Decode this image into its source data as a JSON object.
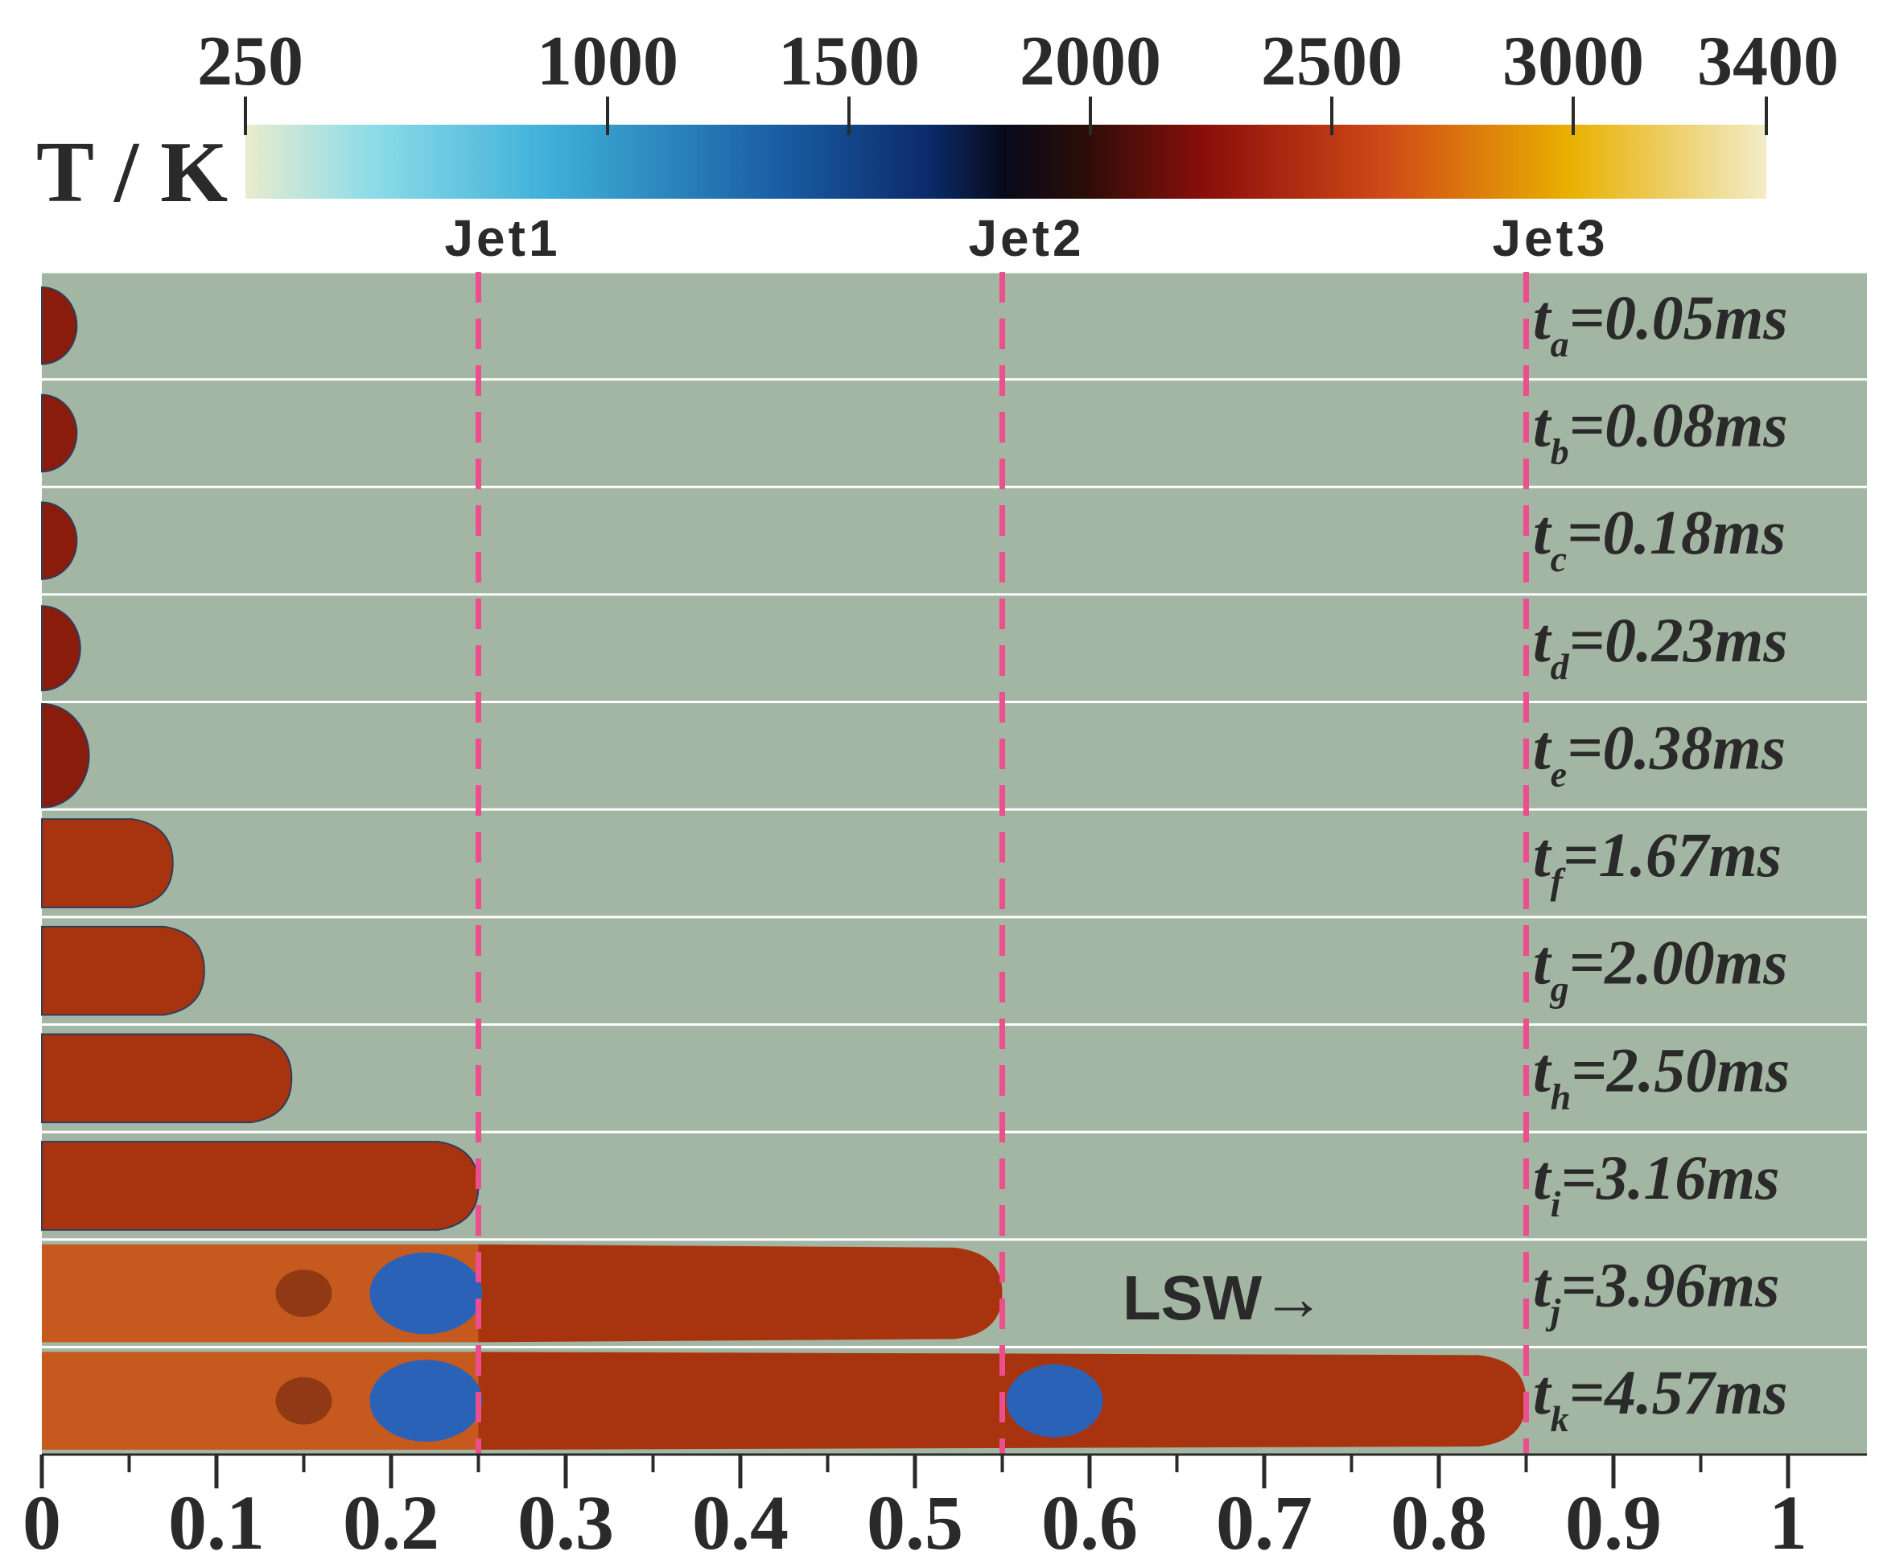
{
  "colorbar": {
    "label": "T / K",
    "min": 250,
    "max": 3400,
    "ticks": [
      "250",
      "1000",
      "1500",
      "2000",
      "2500",
      "3000",
      "3400"
    ],
    "tick_values": [
      250,
      1000,
      1500,
      2000,
      2500,
      3000,
      3400
    ],
    "stops": [
      {
        "offset": 0.0,
        "color": "#e8eccd"
      },
      {
        "offset": 0.08,
        "color": "#8fdde8"
      },
      {
        "offset": 0.2,
        "color": "#3eb0d8"
      },
      {
        "offset": 0.35,
        "color": "#1a5ea4"
      },
      {
        "offset": 0.45,
        "color": "#0b2a6a"
      },
      {
        "offset": 0.5,
        "color": "#080a1a"
      },
      {
        "offset": 0.55,
        "color": "#2a0d08"
      },
      {
        "offset": 0.63,
        "color": "#8a0e0a"
      },
      {
        "offset": 0.75,
        "color": "#d04a18"
      },
      {
        "offset": 0.87,
        "color": "#e8b000"
      },
      {
        "offset": 1.0,
        "color": "#f2ecc8"
      }
    ]
  },
  "jets": [
    {
      "label": "Jet1",
      "x": 0.25
    },
    {
      "label": "Jet2",
      "x": 0.55
    },
    {
      "label": "Jet3",
      "x": 0.85
    }
  ],
  "rows": [
    {
      "t": "t",
      "sub": "a",
      "val": "=0.05ms",
      "front": 0.02
    },
    {
      "t": "t",
      "sub": "b",
      "val": "=0.08ms",
      "front": 0.02
    },
    {
      "t": "t",
      "sub": "c",
      "val": "=0.18ms",
      "front": 0.02
    },
    {
      "t": "t",
      "sub": "d",
      "val": "=0.23ms",
      "front": 0.022
    },
    {
      "t": "t",
      "sub": "e",
      "val": "=0.38ms",
      "front": 0.027
    },
    {
      "t": "t",
      "sub": "f",
      "val": "=1.67ms",
      "front": 0.075
    },
    {
      "t": "t",
      "sub": "g",
      "val": "=2.00ms",
      "front": 0.093
    },
    {
      "t": "t",
      "sub": "h",
      "val": "=2.50ms",
      "front": 0.143
    },
    {
      "t": "t",
      "sub": "i",
      "val": "=3.16ms",
      "front": 0.25
    },
    {
      "t": "t",
      "sub": "j",
      "val": "=3.96ms",
      "front": 0.55
    },
    {
      "t": "t",
      "sub": "k",
      "val": "=4.57ms",
      "front": 0.85
    }
  ],
  "annotation": "LSW→",
  "x_axis": {
    "ticks": [
      "0",
      "0.1",
      "0.2",
      "0.3",
      "0.4",
      "0.5",
      "0.6",
      "0.7",
      "0.8",
      "0.9",
      "1"
    ],
    "tick_values": [
      0,
      0.1,
      0.2,
      0.3,
      0.4,
      0.5,
      0.6,
      0.7,
      0.8,
      0.9,
      1
    ],
    "min": 0,
    "max": 1
  },
  "colors": {
    "background_gas": "#a3b5a3",
    "jet_line": "#ee4d8e",
    "hot_product": "#a8340f",
    "burnt": "#c65a1e",
    "cold_vortex": "#2a62b8"
  }
}
